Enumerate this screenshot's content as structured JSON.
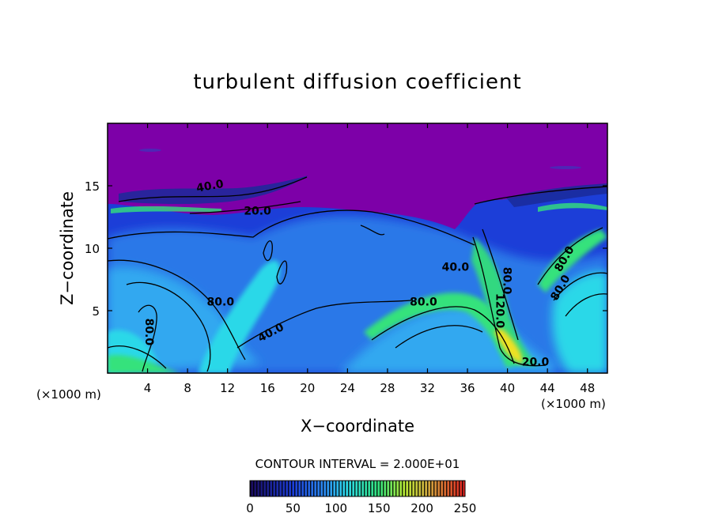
{
  "chart_data": {
    "type": "heatmap",
    "title": "turbulent diffusion coefficient",
    "xlabel": "X−coordinate",
    "ylabel": "Z−coordinate",
    "x_unit_left": "(×1000 m)",
    "x_unit_right": "(×1000 m)",
    "xlim": [
      0,
      50
    ],
    "ylim": [
      0,
      20
    ],
    "x_ticks": [
      4,
      8,
      12,
      16,
      20,
      24,
      28,
      32,
      36,
      40,
      44,
      48
    ],
    "y_ticks": [
      5,
      10,
      15
    ],
    "contour_interval_text": "CONTOUR INTERVAL = 2.000E+01",
    "colorbar": {
      "min": 0,
      "max": 250,
      "ticks": [
        0,
        50,
        100,
        150,
        200,
        250
      ]
    },
    "colors": {
      "low": "#1a0a80",
      "background_upper": "#7d00a8",
      "deep_blue": "#1c3ed8",
      "mid_blue": "#2c8cf0",
      "cyan": "#2cd8e8",
      "green": "#34e27c",
      "yellow": "#f0e020",
      "red": "#e02020"
    },
    "contour_labels": [
      {
        "text": "40.0",
        "x": 10.3,
        "y": 14.7,
        "rotate": -10
      },
      {
        "text": "20.0",
        "x": 15.0,
        "y": 12.7,
        "rotate": 0
      },
      {
        "text": "80.0",
        "x": 11.3,
        "y": 5.4,
        "rotate": 0
      },
      {
        "text": "80.0",
        "x": 3.8,
        "y": 3.3,
        "rotate": 90
      },
      {
        "text": "40.0",
        "x": 16.5,
        "y": 3.0,
        "rotate": -28
      },
      {
        "text": "80.0",
        "x": 31.6,
        "y": 5.4,
        "rotate": 0
      },
      {
        "text": "40.0",
        "x": 34.8,
        "y": 8.2,
        "rotate": 0
      },
      {
        "text": "80.0",
        "x": 39.6,
        "y": 7.4,
        "rotate": 90
      },
      {
        "text": "120.0",
        "x": 38.9,
        "y": 5.0,
        "rotate": 90
      },
      {
        "text": "20.0",
        "x": 42.8,
        "y": 0.6,
        "rotate": 0
      },
      {
        "text": "80.0",
        "x": 45.6,
        "y": 6.7,
        "rotate": -60
      },
      {
        "text": "80.0",
        "x": 46.0,
        "y": 9.0,
        "rotate": -60
      }
    ]
  }
}
